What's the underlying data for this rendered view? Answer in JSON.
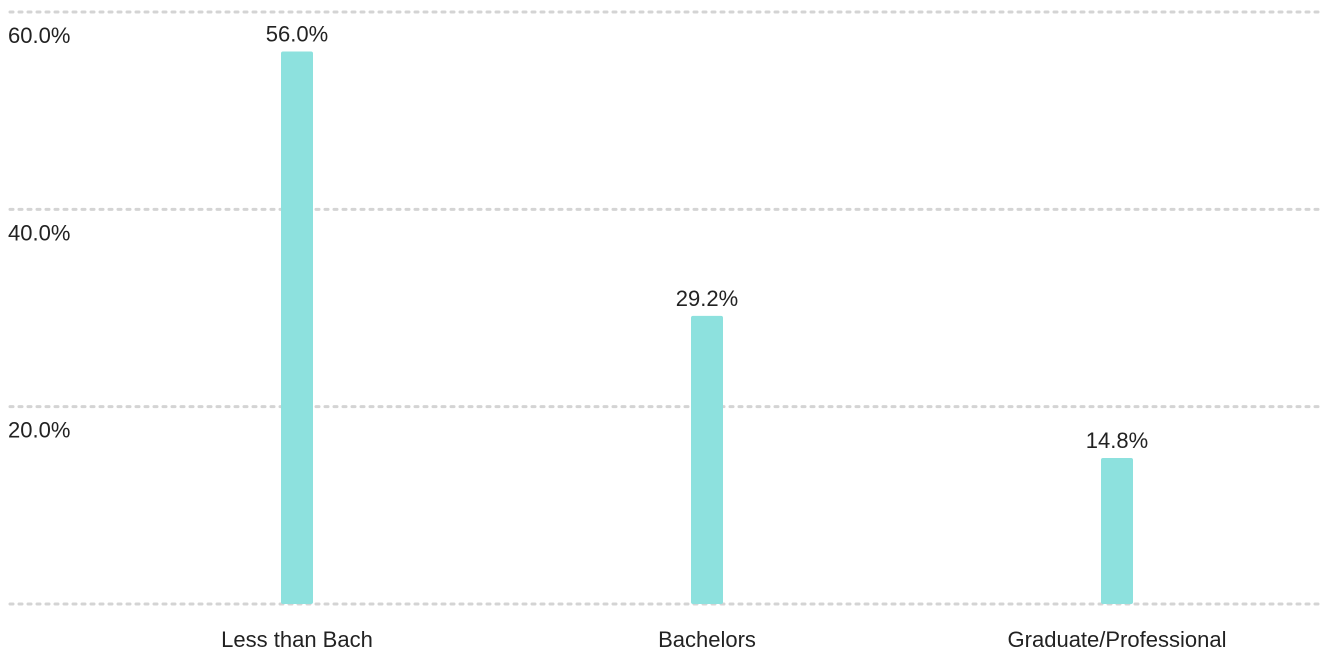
{
  "chart_data": {
    "type": "bar",
    "categories": [
      "Less than Bach",
      "Bachelors",
      "Graduate/Professional"
    ],
    "values": [
      56.0,
      29.2,
      14.8
    ],
    "value_labels": [
      "56.0%",
      "29.2%",
      "14.8%"
    ],
    "yticks": [
      0,
      20,
      40,
      60
    ],
    "ytick_labels": [
      "20.0%",
      "40.0%",
      "60.0%"
    ],
    "ylim": [
      0,
      60
    ],
    "grid": true,
    "bar_color": "#8de1de",
    "title": "",
    "xlabel": "",
    "ylabel": ""
  }
}
